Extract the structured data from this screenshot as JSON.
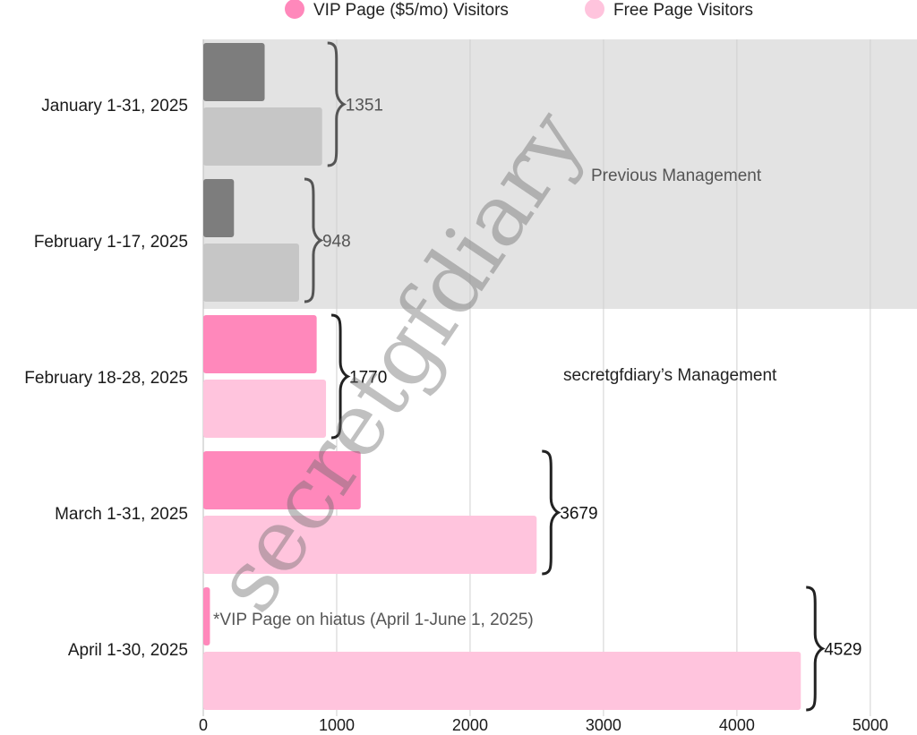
{
  "chart_data": {
    "type": "bar",
    "orientation": "horizontal",
    "categories": [
      "January 1-31, 2025",
      "February 1-17, 2025",
      "February 18-28, 2025",
      "March 1-31, 2025",
      "April 1-30, 2025"
    ],
    "series": [
      {
        "name": "VIP Page ($5/mo) Visitors",
        "values": [
          460,
          230,
          850,
          1180,
          50
        ],
        "color": "#ff88bb"
      },
      {
        "name": "Free Page Visitors",
        "values": [
          891,
          718,
          920,
          2499,
          4479
        ],
        "color": "#ffc4dd"
      }
    ],
    "totals": [
      "1351",
      "948",
      "1770",
      "3679",
      "4529"
    ],
    "xlim": [
      0,
      5350
    ],
    "xticks": [
      "0",
      "1000",
      "2000",
      "3000",
      "4000",
      "5000"
    ],
    "xtick_values": [
      0,
      1000,
      2000,
      3000,
      4000,
      5000
    ],
    "grid": true,
    "legend_position": "top",
    "previous_period_colors": {
      "vip": "#7d7d7d",
      "free": "#c6c6c6",
      "band": "#e3e3e3"
    },
    "annotations": {
      "previous": "Previous Management",
      "current": "secretgfdiary’s Management",
      "hiatus": "*VIP Page on hiatus (April 1-June 1, 2025)"
    },
    "watermark": "secretgfdiary"
  }
}
